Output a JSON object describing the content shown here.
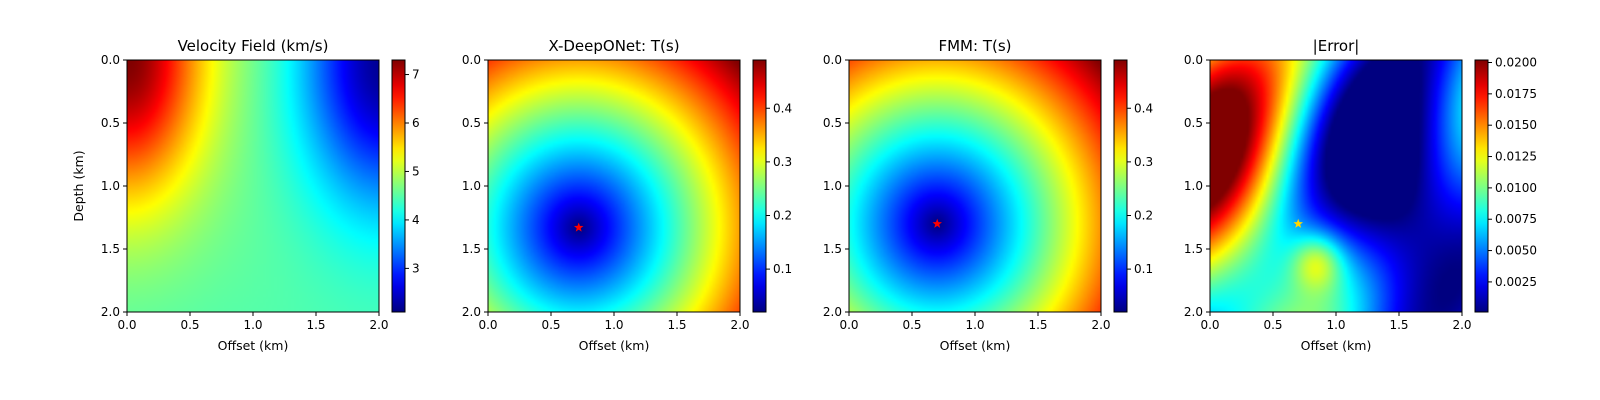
{
  "chart_data": [
    {
      "type": "heatmap",
      "title": "Velocity Field (km/s)",
      "xlabel": "Offset (km)",
      "ylabel": "Depth (km)",
      "xlim": [
        0,
        2
      ],
      "ylim": [
        2,
        0
      ],
      "xticks": [
        "0.0",
        "0.5",
        "1.0",
        "1.5",
        "2.0"
      ],
      "yticks": [
        "0.0",
        "0.5",
        "1.0",
        "1.5",
        "2.0"
      ],
      "colormap": "jet",
      "colorbar": {
        "min": 2.1,
        "max": 7.3,
        "ticks": [
          3,
          4,
          5,
          6,
          7
        ],
        "tick_labels": [
          "3",
          "4",
          "5",
          "6",
          "7"
        ]
      },
      "field": "velocity"
    },
    {
      "type": "heatmap",
      "title": "X-DeepONet: T(s)",
      "xlabel": "Offset (km)",
      "ylabel": "",
      "xlim": [
        0,
        2
      ],
      "ylim": [
        2,
        0
      ],
      "xticks": [
        "0.0",
        "0.5",
        "1.0",
        "1.5",
        "2.0"
      ],
      "yticks": [
        "0.0",
        "0.5",
        "1.0",
        "1.5",
        "2.0"
      ],
      "colormap": "jet",
      "colorbar": {
        "min": 0.02,
        "max": 0.49,
        "ticks": [
          0.1,
          0.2,
          0.3,
          0.4
        ],
        "tick_labels": [
          "0.1",
          "0.2",
          "0.3",
          "0.4"
        ]
      },
      "field": "traveltime",
      "source": {
        "x": 0.72,
        "y": 1.33,
        "color": "#ff0000"
      }
    },
    {
      "type": "heatmap",
      "title": "FMM: T(s)",
      "xlabel": "Offset (km)",
      "ylabel": "",
      "xlim": [
        0,
        2
      ],
      "ylim": [
        2,
        0
      ],
      "xticks": [
        "0.0",
        "0.5",
        "1.0",
        "1.5",
        "2.0"
      ],
      "yticks": [
        "0.0",
        "0.5",
        "1.0",
        "1.5",
        "2.0"
      ],
      "colormap": "jet",
      "colorbar": {
        "min": 0.02,
        "max": 0.49,
        "ticks": [
          0.1,
          0.2,
          0.3,
          0.4
        ],
        "tick_labels": [
          "0.1",
          "0.2",
          "0.3",
          "0.4"
        ]
      },
      "field": "traveltime",
      "source": {
        "x": 0.7,
        "y": 1.3,
        "color": "#ff0000"
      }
    },
    {
      "type": "heatmap",
      "title": "|Error|",
      "xlabel": "Offset (km)",
      "ylabel": "",
      "xlim": [
        0,
        2
      ],
      "ylim": [
        2,
        0
      ],
      "xticks": [
        "0.0",
        "0.5",
        "1.0",
        "1.5",
        "2.0"
      ],
      "yticks": [
        "0.0",
        "0.5",
        "1.0",
        "1.5",
        "2.0"
      ],
      "colormap": "jet",
      "colorbar": {
        "min": 0.0001,
        "max": 0.0202,
        "ticks": [
          0.0025,
          0.005,
          0.0075,
          0.01,
          0.0125,
          0.015,
          0.0175,
          0.02
        ],
        "tick_labels": [
          "0.0025",
          "0.0050",
          "0.0075",
          "0.0100",
          "0.0125",
          "0.0150",
          "0.0175",
          "0.0200"
        ]
      },
      "field": "error",
      "source": {
        "x": 0.7,
        "y": 1.3,
        "color": "#ffd700"
      }
    }
  ]
}
